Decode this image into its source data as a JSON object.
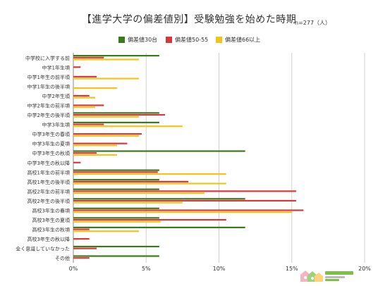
{
  "title": "【進学大学の偏差値別】受験勉強を始めた時期",
  "note": "n=277（人）",
  "colors": {
    "s1": "#3b7a1c",
    "s2": "#d9383a",
    "s3": "#f0c419",
    "grid": "#d0d0d0",
    "axis": "#888888"
  },
  "logo": {
    "name": "tutoring-brand-logo"
  },
  "chart_data": {
    "type": "bar",
    "orientation": "horizontal",
    "title": "【進学大学の偏差値別】受験勉強を始めた時期",
    "xlim": [
      0,
      20
    ],
    "xticks": [
      "0%",
      "5%",
      "10%",
      "15%",
      "20%"
    ],
    "grid": true,
    "legend_position": "top",
    "categories": [
      "中学校に入学する前",
      "中学1年生頃",
      "中学1年生の前半頃",
      "中学1年生の後半頃",
      "中学2年生頃",
      "中学2年生の前半頃",
      "中学2年生の後半頃",
      "中学3年生頃",
      "中学3年生の春頃",
      "中学3年生の夏頃",
      "中学3年生の秋頃",
      "中学3年生の秋以降",
      "高校1年生の前半頃",
      "高校1年生の後半頃",
      "高校2年生の前半頃",
      "高校2年生の後半頃",
      "高校3年生の春頃",
      "高校3年生の夏頃",
      "高校3年生の秋頃",
      "高校3年生の秋以降",
      "全く意識していなかった",
      "その他"
    ],
    "series": [
      {
        "name": "偏差値30台",
        "values": [
          5.9,
          0,
          0,
          0,
          0,
          0,
          5.9,
          5.9,
          0,
          0,
          11.8,
          0,
          5.9,
          5.9,
          5.9,
          11.8,
          5.9,
          5.9,
          11.8,
          0,
          5.9,
          5.9
        ]
      },
      {
        "name": "偏差値50-55",
        "values": [
          2.1,
          0.5,
          1.6,
          0,
          1.1,
          2.1,
          6.3,
          2.1,
          4.7,
          3.7,
          1.6,
          0.5,
          5.8,
          7.9,
          15.3,
          15.3,
          15.8,
          10.5,
          1.1,
          1.1,
          1.6,
          1.1
        ]
      },
      {
        "name": "偏差値66以上",
        "values": [
          4.5,
          0,
          4.5,
          3.0,
          1.5,
          1.5,
          4.5,
          7.5,
          4.5,
          3.0,
          3.0,
          0,
          10.5,
          10.5,
          9.0,
          7.5,
          15.0,
          6.0,
          4.5,
          0,
          0,
          0
        ]
      }
    ]
  }
}
